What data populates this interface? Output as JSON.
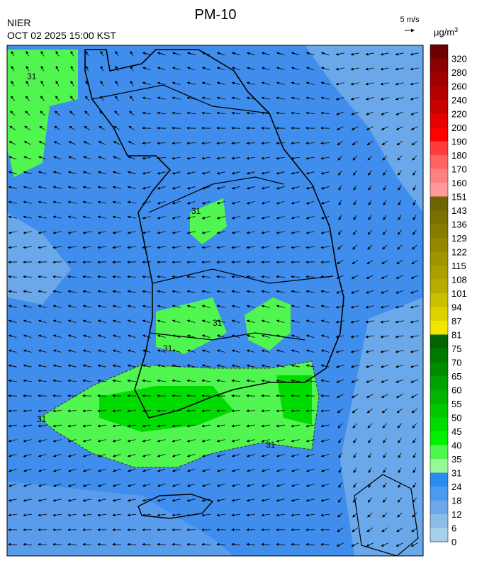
{
  "header": {
    "title": "PM-10",
    "agency": "NIER",
    "timestamp": "OCT 02 2025 15:00 KST",
    "wind_scale": "5 m/s"
  },
  "legend": {
    "unit_base": "μg/m",
    "unit_exp": "3",
    "ticks": [
      320,
      280,
      260,
      240,
      220,
      200,
      190,
      180,
      170,
      160,
      151,
      143,
      136,
      129,
      122,
      115,
      108,
      101,
      94,
      87,
      81,
      75,
      70,
      65,
      60,
      55,
      50,
      45,
      40,
      35,
      31,
      24,
      18,
      12,
      6,
      0
    ],
    "colors": [
      "#6e0000",
      "#8b0000",
      "#a00000",
      "#b40000",
      "#c80000",
      "#e60000",
      "#ff0000",
      "#ff3c3c",
      "#ff6464",
      "#ff8080",
      "#ff9a9a",
      "#6e6400",
      "#7a7000",
      "#877c00",
      "#938800",
      "#a09400",
      "#aca000",
      "#b9ac00",
      "#c8c000",
      "#dcd200",
      "#f0e600",
      "#006400",
      "#007800",
      "#008c00",
      "#00a000",
      "#00b400",
      "#00c800",
      "#00dc00",
      "#00f000",
      "#50f550",
      "#96f896",
      "#2a8bf0",
      "#4a9aee",
      "#6aa8ea",
      "#8cbde8",
      "#a8d0e8"
    ]
  },
  "map": {
    "contour_labels": [
      "31",
      "31",
      "31",
      "31",
      "31",
      "31"
    ]
  }
}
